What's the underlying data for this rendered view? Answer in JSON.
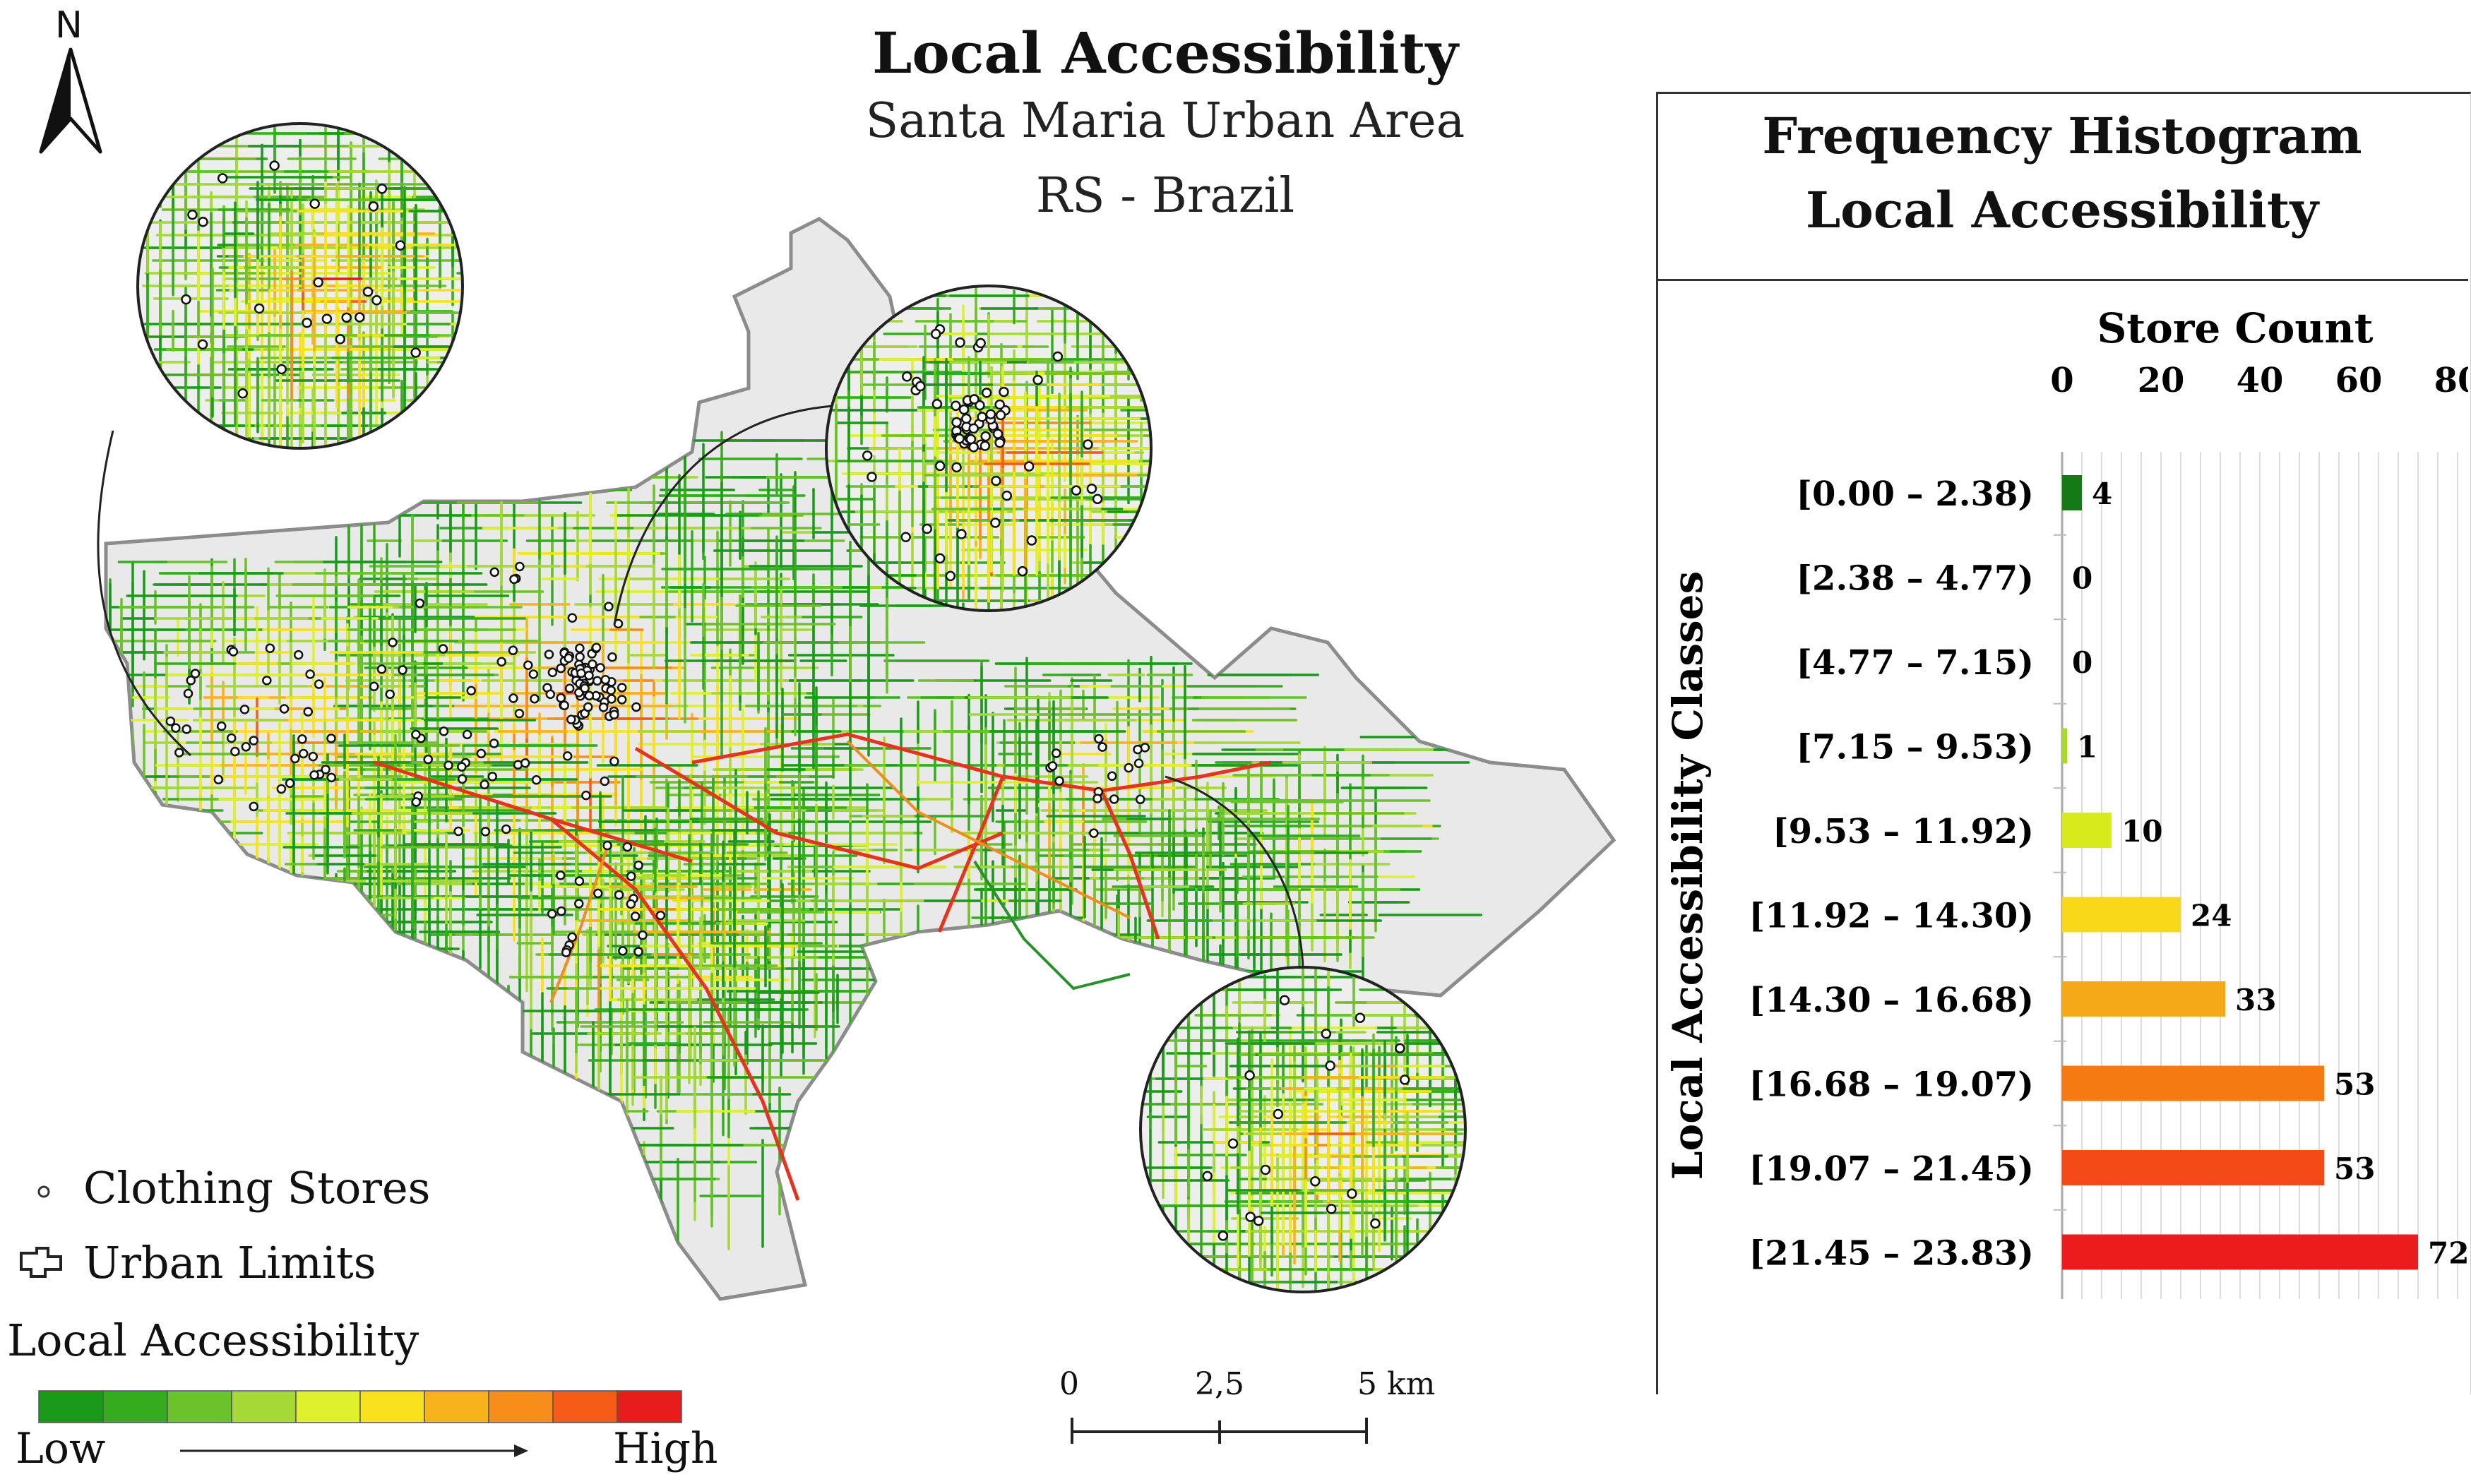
{
  "map": {
    "title": "Local Accessibility",
    "subtitle_line1": "Santa Maria Urban Area",
    "subtitle_line2": "RS - Brazil",
    "north_label": "N",
    "legend": {
      "stores_label": "Clothing Stores",
      "limits_label": "Urban Limits",
      "ramp_title": "Local Accessibility",
      "low_label": "Low",
      "high_label": "High",
      "ramp_colors": [
        "#1a9a1a",
        "#35ac1d",
        "#6cc22a",
        "#a4d936",
        "#dff02c",
        "#f9e21d",
        "#f8b21b",
        "#f88d19",
        "#f65c18",
        "#e81c1c"
      ]
    },
    "scale": {
      "label_0": "0",
      "label_mid": "2,5",
      "label_end": "5 km"
    }
  },
  "histogram": {
    "title_line1": "Frequency Histogram",
    "title_line2": "Local Accessibility",
    "chart_data": {
      "type": "bar",
      "orientation": "horizontal",
      "title": "Store Count",
      "xlabel": "Store Count",
      "ylabel": "Local Accessibility Classes",
      "xlim": [
        0,
        80
      ],
      "xticks": [
        "0",
        "20",
        "40",
        "60",
        "80"
      ],
      "categories": [
        "[0.00 – 2.38)",
        "[2.38 – 4.77)",
        "[4.77 – 7.15)",
        "[7.15 – 9.53)",
        "[9.53 – 11.92)",
        "[11.92 – 14.30)",
        "[14.30 – 16.68)",
        "[16.68 – 19.07)",
        "[19.07 – 21.45)",
        "[21.45 – 23.83)"
      ],
      "values": [
        4,
        0,
        0,
        1,
        10,
        24,
        33,
        53,
        53,
        72
      ],
      "colors": [
        "#157a15",
        "#2f9a2f",
        "#6cc22a",
        "#a8d82a",
        "#d6ea1c",
        "#f7d91a",
        "#f6a917",
        "#f67a12",
        "#f44a17",
        "#ea1c1c"
      ]
    }
  }
}
